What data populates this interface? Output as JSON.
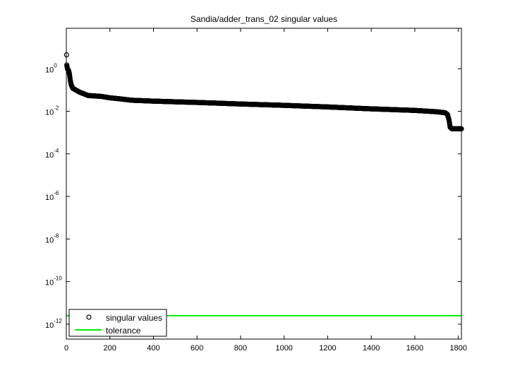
{
  "chart_data": {
    "type": "scatter",
    "title": "Sandia/adder_trans_02 singular values",
    "xlabel": "",
    "ylabel": "",
    "xlim": [
      0,
      1814
    ],
    "ylim_log10": [
      -12.7,
      1.9
    ],
    "yscale": "log",
    "grid": false,
    "legend_position": "bottom-left",
    "x_ticks": [
      0,
      200,
      400,
      600,
      800,
      1000,
      1200,
      1400,
      1600,
      1800
    ],
    "y_ticks_exponents": [
      0,
      -2,
      -4,
      -6,
      -8,
      -10,
      -12
    ],
    "y_tick_base": "10",
    "series": [
      {
        "name": "singular values",
        "marker": "circle",
        "color": "#000000",
        "n": 1814,
        "profile_x": [
          1,
          2,
          5,
          10,
          14,
          18,
          22,
          30,
          60,
          100,
          160,
          200,
          250,
          300,
          400,
          600,
          800,
          1000,
          1200,
          1400,
          1600,
          1700,
          1740,
          1750,
          1757,
          1762,
          1770,
          1800,
          1814
        ],
        "profile_y": [
          4.5,
          1.5,
          1.0,
          0.85,
          0.6,
          0.3,
          0.18,
          0.12,
          0.08,
          0.055,
          0.05,
          0.043,
          0.038,
          0.033,
          0.03,
          0.026,
          0.022,
          0.019,
          0.016,
          0.013,
          0.011,
          0.0095,
          0.0085,
          0.007,
          0.004,
          0.0018,
          0.0015,
          0.0015,
          0.0015
        ],
        "outline_points_x": [
          1,
          2,
          5,
          10,
          14,
          18,
          22
        ]
      },
      {
        "name": "tolerance",
        "type": "line",
        "color": "#00ee00",
        "value": 2.5e-12
      }
    ]
  }
}
